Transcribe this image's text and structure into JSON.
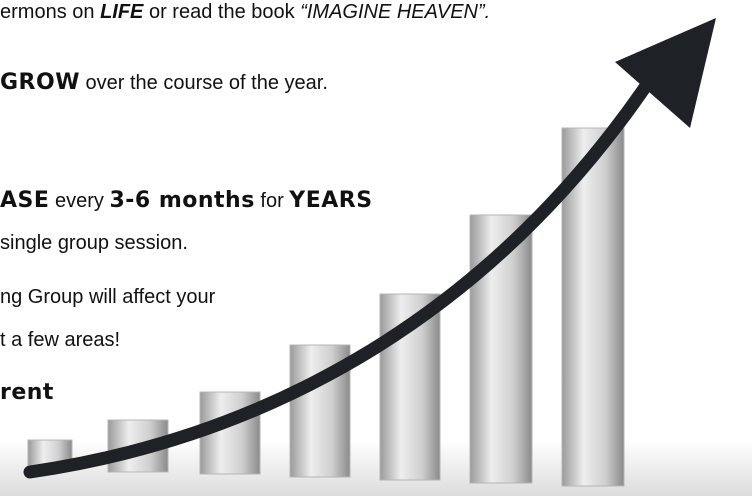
{
  "lines": [
    [
      "ermons on ",
      "LIFE",
      " or read the book ",
      "“IMAGINE HEAVEN”."
    ],
    [
      "GROW",
      " over the course of the year."
    ],
    [
      "ASE",
      " every ",
      "3-6 months",
      " for ",
      "YEARS"
    ],
    [
      "single group session."
    ],
    [
      "ng Group will affect your"
    ],
    [
      "t a few areas!"
    ],
    [
      "rent"
    ]
  ]
}
